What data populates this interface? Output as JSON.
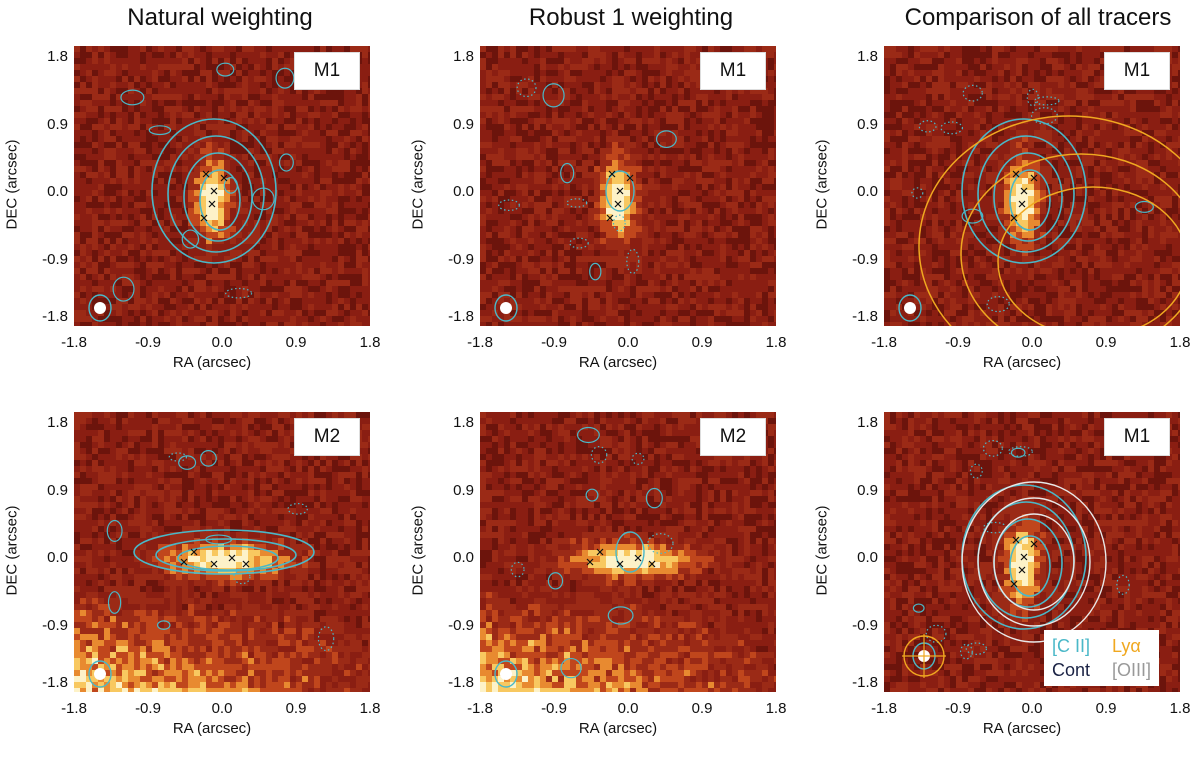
{
  "columns": {
    "natural": "Natural weighting",
    "robust": "Robust 1 weighting",
    "compare": "Comparison of all tracers"
  },
  "axes": {
    "ticks": [
      "-1.8",
      "-0.9",
      "0.0",
      "0.9",
      "1.8"
    ],
    "xlabel": "RA (arcsec)",
    "ylabel": "DEC (arcsec)"
  },
  "panels": [
    {
      "id": "p1",
      "tag": "M1",
      "column": "natural",
      "row": 1
    },
    {
      "id": "p2",
      "tag": "M1",
      "column": "robust",
      "row": 1
    },
    {
      "id": "p3",
      "tag": "M1",
      "column": "compare",
      "row": 1
    },
    {
      "id": "p4",
      "tag": "M2",
      "column": "natural",
      "row": 2
    },
    {
      "id": "p5",
      "tag": "M2",
      "column": "robust",
      "row": 2
    },
    {
      "id": "p6",
      "tag": "M1",
      "column": "compare",
      "row": 2
    }
  ],
  "legend": {
    "cii": "[C II]",
    "lya": "Lyα",
    "cont": "Cont",
    "oiii": "[OIII]"
  },
  "colors": {
    "background_map": "#8a1e12",
    "cii_contour": "#4ab8c8",
    "lya_contour": "#f0a820",
    "oiii_contour": "#e8e8e8",
    "cont_label": "#1a2244",
    "oiii_label": "#999999"
  }
}
